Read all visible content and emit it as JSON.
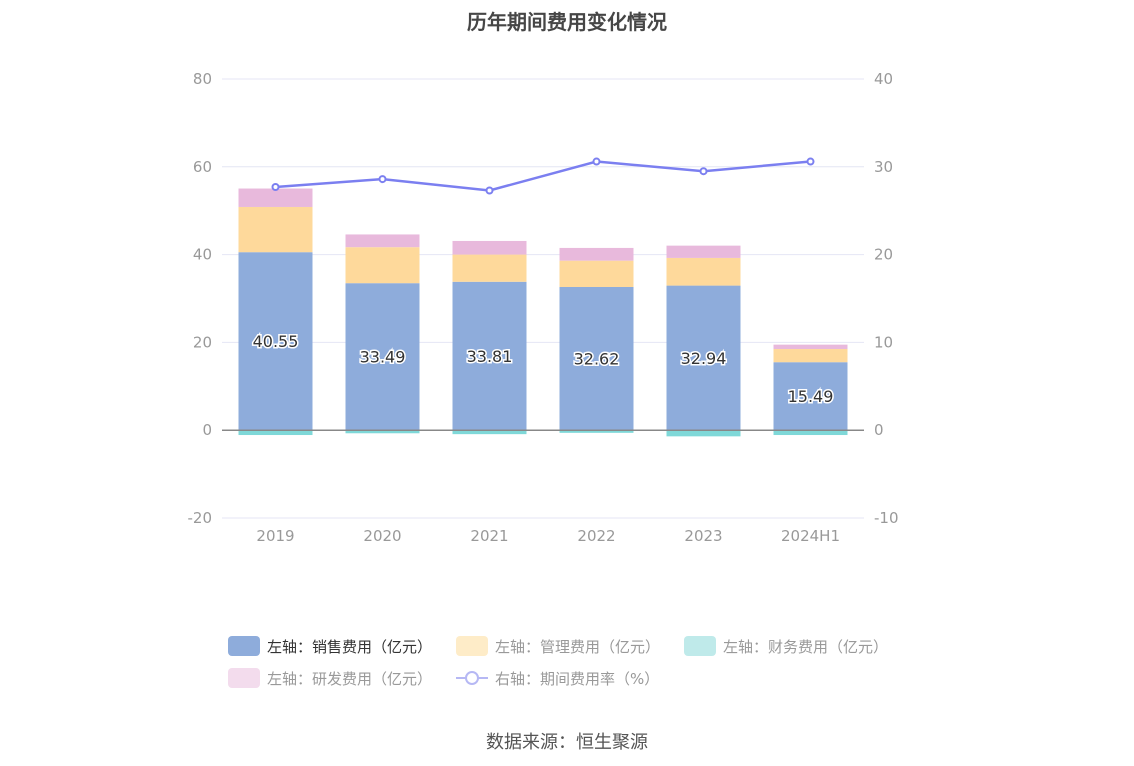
{
  "chart_data": {
    "type": "bar",
    "title": "历年期间费用变化情况",
    "categories": [
      "2019",
      "2020",
      "2021",
      "2022",
      "2023",
      "2024H1"
    ],
    "stacked": true,
    "left_axis": {
      "ylim": [
        -20,
        80
      ],
      "ticks": [
        -20,
        0,
        20,
        40,
        60,
        80
      ]
    },
    "right_axis": {
      "ylim": [
        -10,
        40
      ],
      "ticks": [
        -10,
        0,
        10,
        20,
        30,
        40
      ]
    },
    "series": [
      {
        "name": "左轴：销售费用（亿元）",
        "axis": "left",
        "type": "bar",
        "color": "#8eacdb",
        "values": [
          40.55,
          33.49,
          33.81,
          32.62,
          32.94,
          15.49
        ],
        "show_labels": true
      },
      {
        "name": "左轴：管理费用（亿元）",
        "axis": "left",
        "type": "bar",
        "color": "#fed99b",
        "values": [
          10.3,
          8.2,
          6.2,
          6.0,
          6.3,
          3.0
        ]
      },
      {
        "name": "左轴：财务费用（亿元）",
        "axis": "left",
        "type": "bar",
        "color": "#7fd8d8",
        "values": [
          -1.1,
          -0.7,
          -0.9,
          -0.6,
          -1.4,
          -1.1
        ]
      },
      {
        "name": "左轴：研发费用（亿元）",
        "axis": "left",
        "type": "bar",
        "color": "#e8b9dc",
        "values": [
          4.2,
          2.9,
          3.1,
          2.9,
          2.8,
          1.0
        ]
      },
      {
        "name": "右轴：期间费用率（%）",
        "axis": "right",
        "type": "line",
        "color": "#7b7ff0",
        "values": [
          27.7,
          28.6,
          27.3,
          30.6,
          29.5,
          30.6
        ]
      }
    ]
  },
  "legend": [
    {
      "label": "左轴：销售费用（亿元）",
      "color": "#8eacdb",
      "kind": "bar",
      "active": true
    },
    {
      "label": "左轴：管理费用（亿元）",
      "color": "#feecc8",
      "kind": "bar",
      "active": false
    },
    {
      "label": "左轴：财务费用（亿元）",
      "color": "#bfeaea",
      "kind": "bar",
      "active": false
    },
    {
      "label": "左轴：研发费用（亿元）",
      "color": "#f3dced",
      "kind": "bar",
      "active": false
    },
    {
      "label": "右轴：期间费用率（%）",
      "color": "#b6b8f4",
      "kind": "line",
      "active": false
    }
  ],
  "source": "数据来源：恒生聚源"
}
